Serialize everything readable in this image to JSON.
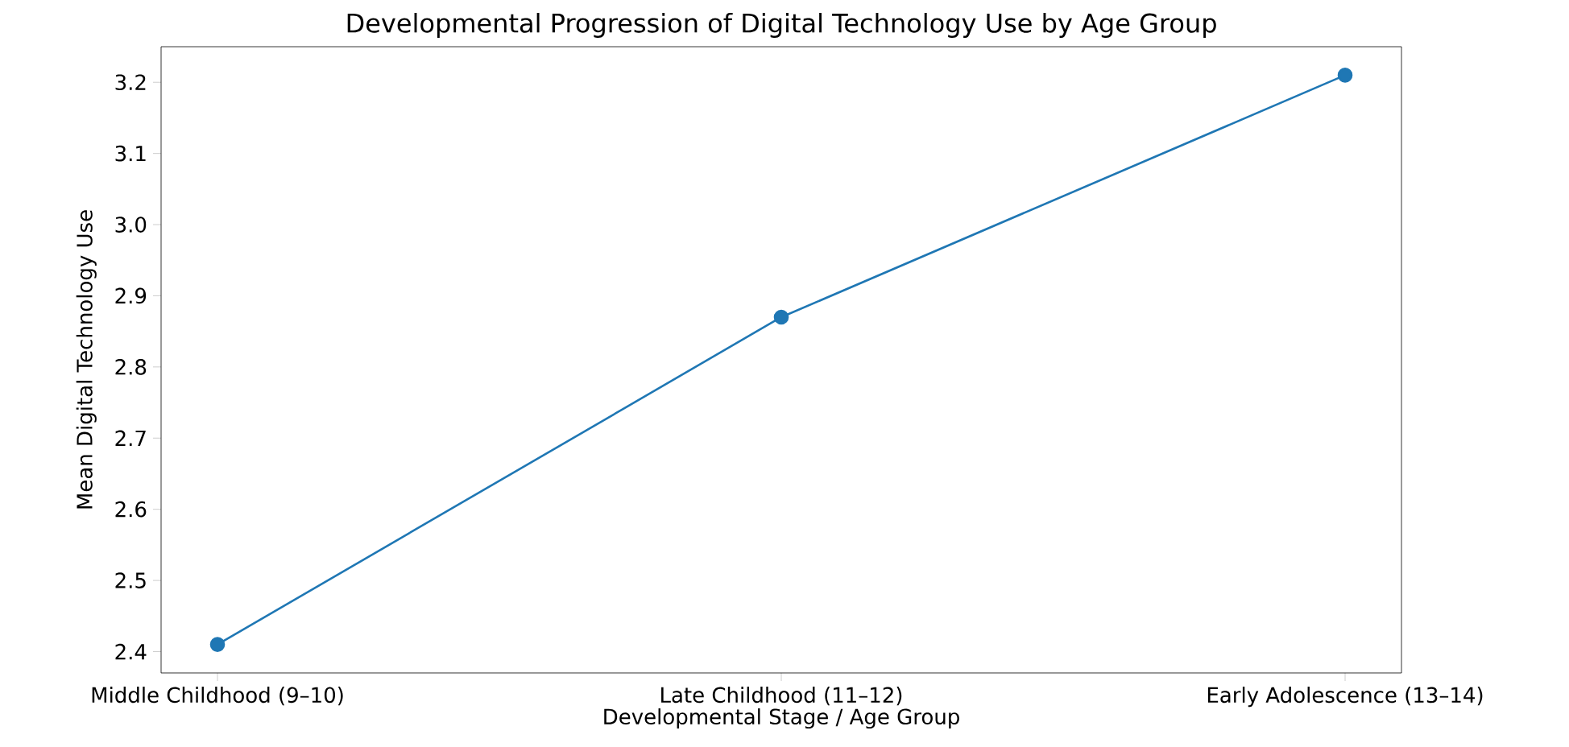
{
  "chart_data": {
    "type": "line",
    "title": "Developmental Progression of Digital Technology Use by Age Group",
    "xlabel": "Developmental Stage / Age Group",
    "ylabel": "Mean Digital Technology Use",
    "categories": [
      "Middle Childhood (9–10)",
      "Late Childhood (11–12)",
      "Early Adolescence (13–14)"
    ],
    "series": [
      {
        "color": "#1f77b4",
        "values": [
          2.41,
          2.87,
          3.21
        ]
      }
    ],
    "ylim": [
      2.37,
      3.25
    ],
    "yticks": [
      2.4,
      2.5,
      2.6,
      2.7,
      2.8,
      2.9,
      {
        "value": 3.0,
        "label": "3.0"
      },
      3.1,
      3.2
    ],
    "marker": "circle",
    "line_style": "solid",
    "grid": false
  }
}
